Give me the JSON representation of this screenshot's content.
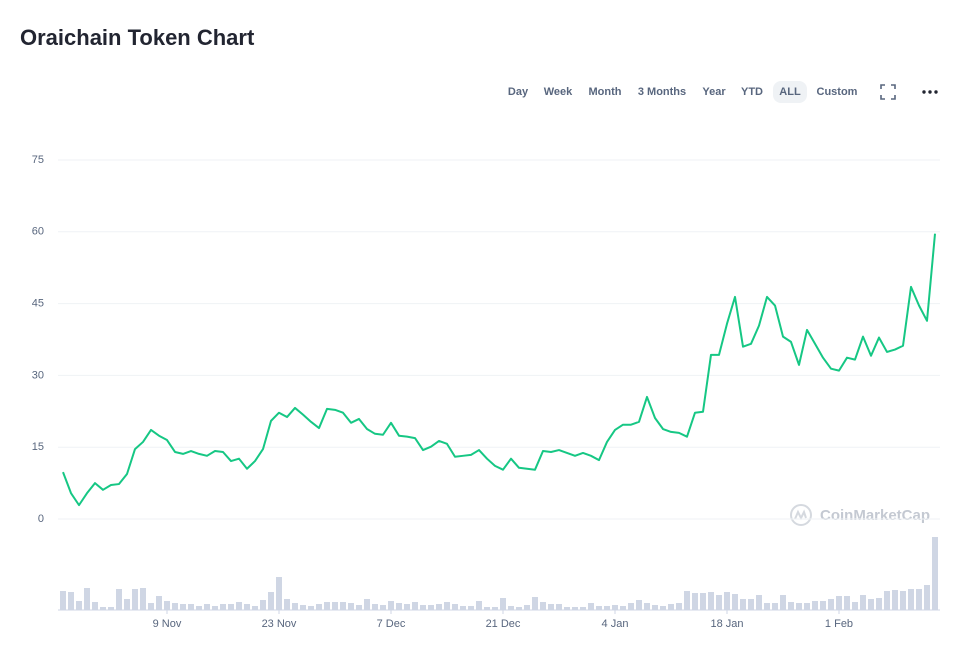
{
  "chart_data": {
    "type": "line",
    "title": "Oraichain Token Chart",
    "range_buttons": [
      "Day",
      "Week",
      "Month",
      "3 Months",
      "Year",
      "YTD",
      "ALL",
      "Custom"
    ],
    "active_button": 6,
    "watermark": "CoinMarketCap",
    "color": "#16c784",
    "volume_color": "#cfd6e4",
    "grid": true,
    "ylim": [
      0,
      75
    ],
    "yticks": [
      0,
      15,
      30,
      45,
      60,
      75
    ],
    "categories": [
      null,
      null,
      null,
      null,
      null,
      null,
      null,
      null,
      null,
      null,
      null,
      null,
      null,
      "9 Nov",
      null,
      null,
      null,
      null,
      null,
      null,
      null,
      null,
      null,
      null,
      null,
      null,
      null,
      "23 Nov",
      null,
      null,
      null,
      null,
      null,
      null,
      null,
      null,
      null,
      null,
      null,
      null,
      null,
      "7 Dec",
      null,
      null,
      null,
      null,
      null,
      null,
      null,
      null,
      null,
      null,
      null,
      null,
      null,
      "21 Dec",
      null,
      null,
      null,
      null,
      null,
      null,
      null,
      null,
      null,
      null,
      null,
      null,
      null,
      "4 Jan",
      null,
      null,
      null,
      null,
      null,
      null,
      null,
      null,
      null,
      null,
      null,
      null,
      null,
      "18 Jan",
      null,
      null,
      null,
      null,
      null,
      null,
      null,
      null,
      null,
      null,
      null,
      null,
      null,
      "1 Feb",
      null,
      null,
      null,
      null,
      null,
      null,
      null,
      null,
      null,
      null,
      null,
      null
    ],
    "values": [
      9.8,
      5.4,
      2.9,
      5.4,
      7.5,
      6.1,
      7.1,
      7.3,
      9.4,
      14.6,
      16.1,
      18.6,
      17.4,
      16.5,
      14.0,
      13.6,
      14.2,
      13.6,
      13.2,
      14.2,
      14.0,
      12.1,
      12.6,
      10.5,
      12.1,
      14.6,
      20.5,
      22.2,
      21.3,
      23.2,
      21.8,
      20.3,
      19.0,
      23.0,
      22.8,
      22.2,
      20.1,
      20.9,
      18.8,
      17.8,
      17.6,
      20.1,
      17.4,
      17.2,
      16.9,
      14.4,
      15.1,
      16.3,
      15.7,
      13.0,
      13.2,
      13.4,
      14.4,
      12.6,
      11.1,
      10.3,
      12.6,
      10.7,
      10.5,
      10.3,
      14.2,
      14.0,
      14.4,
      13.8,
      13.2,
      13.8,
      13.2,
      12.3,
      16.1,
      18.6,
      19.7,
      19.7,
      20.3,
      25.5,
      21.1,
      18.8,
      18.2,
      18.0,
      17.2,
      22.2,
      22.4,
      34.3,
      34.3,
      40.8,
      46.4,
      36.0,
      36.6,
      40.4,
      46.4,
      44.6,
      38.1,
      37.0,
      32.2,
      39.5,
      36.6,
      33.7,
      31.4,
      31.0,
      33.7,
      33.3,
      38.1,
      34.1,
      37.9,
      34.9,
      35.4,
      36.2,
      48.5,
      44.6,
      41.4,
      59.6
    ],
    "volume": [
      19,
      18,
      9,
      22,
      8,
      3,
      3,
      21,
      11,
      21,
      22,
      7,
      14,
      9,
      7,
      6,
      6,
      4,
      6,
      4,
      6,
      6,
      8,
      6,
      4,
      10,
      18,
      33,
      11,
      7,
      5,
      4,
      6,
      8,
      8,
      8,
      7,
      5,
      11,
      6,
      5,
      9,
      7,
      6,
      8,
      5,
      5,
      6,
      8,
      6,
      4,
      4,
      9,
      3,
      3,
      12,
      4,
      3,
      5,
      13,
      8,
      6,
      6,
      3,
      3,
      3,
      7,
      4,
      4,
      5,
      4,
      7,
      10,
      7,
      5,
      4,
      6,
      7,
      19,
      17,
      17,
      18,
      15,
      18,
      16,
      11,
      11,
      15,
      7,
      7,
      15,
      8,
      7,
      7,
      9,
      9,
      11,
      14,
      14,
      8,
      15,
      11,
      12,
      19,
      20,
      19,
      21,
      21,
      25,
      73
    ]
  }
}
